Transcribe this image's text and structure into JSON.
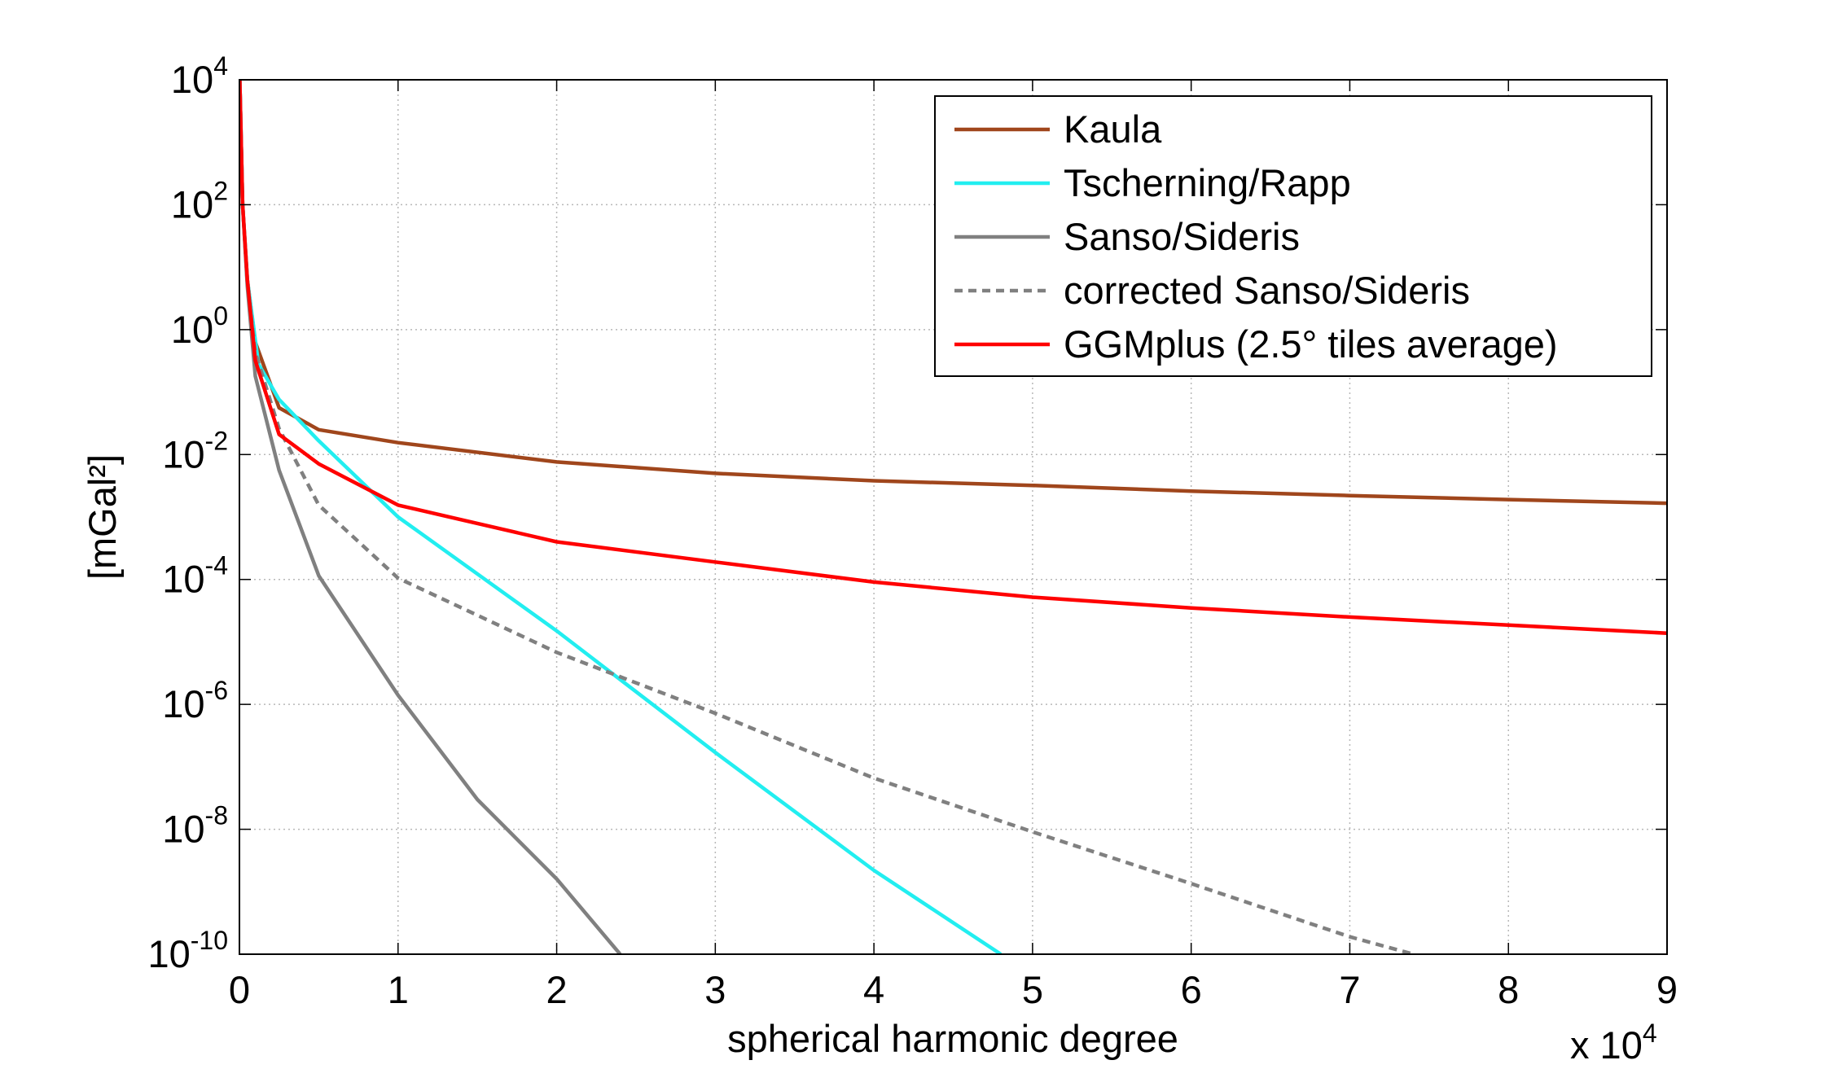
{
  "chart_data": {
    "type": "line",
    "xlabel": "spherical harmonic degree",
    "ylabel": "[mGal²]",
    "x_multiplier": {
      "label": "x 10",
      "exponent": "4"
    },
    "xlim": [
      0,
      90000
    ],
    "ylim": [
      1e-10,
      10000
    ],
    "log_y": true,
    "grid": true,
    "legend": "upper right",
    "xticks": [
      0,
      {
        "value": 10000,
        "label": "1"
      },
      {
        "value": 20000,
        "label": "2"
      },
      {
        "value": 30000,
        "label": "3"
      },
      {
        "value": 40000,
        "label": "4"
      },
      {
        "value": 50000,
        "label": "5"
      },
      {
        "value": 60000,
        "label": "6"
      },
      {
        "value": 70000,
        "label": "7"
      },
      {
        "value": 80000,
        "label": "8"
      },
      {
        "value": 90000,
        "label": "9"
      }
    ],
    "yticks": [
      {
        "value": 1e-10,
        "label": "10",
        "exponent": "-10"
      },
      {
        "value": 1e-08,
        "label": "10",
        "exponent": "-8"
      },
      {
        "value": 1e-06,
        "label": "10",
        "exponent": "-6"
      },
      {
        "value": 0.0001,
        "label": "10",
        "exponent": "-4"
      },
      {
        "value": 0.01,
        "label": "10",
        "exponent": "-2"
      },
      {
        "value": 1,
        "label": "10",
        "exponent": "0"
      },
      {
        "value": 100,
        "label": "10",
        "exponent": "2"
      },
      {
        "value": 10000,
        "label": "10",
        "exponent": "4"
      }
    ],
    "series": [
      {
        "name": "Kaula",
        "color": "#a0461c",
        "dash": false,
        "x": [
          20,
          200,
          500,
          1000,
          2500,
          5000,
          10000,
          20000,
          30000,
          40000,
          50000,
          60000,
          70000,
          80000,
          90000
        ],
        "values": [
          10000,
          100,
          6.3,
          0.63,
          0.056,
          0.025,
          0.0155,
          0.0076,
          0.005,
          0.0038,
          0.0032,
          0.0026,
          0.0022,
          0.0019,
          0.00166
        ]
      },
      {
        "name": "Tscherning/Rapp",
        "color": "#22eef0",
        "dash": false,
        "x": [
          20,
          200,
          500,
          1200,
          2500,
          5000,
          10000,
          20000,
          30000,
          40000,
          48000
        ],
        "values": [
          10000,
          100,
          6.3,
          0.28,
          0.076,
          0.0166,
          0.001,
          1.5e-05,
          1.7e-07,
          2.2e-09,
          1e-10
        ]
      },
      {
        "name": "Sanso/Sideris",
        "color": "#808080",
        "dash": false,
        "x": [
          20,
          200,
          500,
          1000,
          2500,
          5000,
          10000,
          15000,
          20000,
          24000
        ],
        "values": [
          10000,
          100,
          5,
          0.18,
          0.0056,
          0.000115,
          1.4e-06,
          3e-08,
          1.6e-09,
          1e-10
        ]
      },
      {
        "name": "corrected Sanso/Sideris",
        "color": "#808080",
        "dash": true,
        "x": [
          20,
          200,
          500,
          1000,
          2500,
          5000,
          10000,
          20000,
          30000,
          40000,
          50000,
          60000,
          70000,
          74000
        ],
        "values": [
          10000,
          100,
          5.5,
          0.43,
          0.026,
          0.00155,
          0.000105,
          6.8e-06,
          7.2e-07,
          6.6e-08,
          9.1e-09,
          1.35e-09,
          1.9e-10,
          1e-10
        ]
      },
      {
        "name": "GGMplus (2.5° tiles average)",
        "color": "#ff0000",
        "dash": false,
        "x": [
          20,
          200,
          500,
          1000,
          2500,
          5000,
          10000,
          20000,
          30000,
          40000,
          50000,
          60000,
          70000,
          80000,
          90000
        ],
        "values": [
          10000,
          100,
          6.3,
          0.32,
          0.021,
          0.0071,
          0.00155,
          0.0004,
          0.00019,
          9.1e-05,
          5.2e-05,
          3.5e-05,
          2.5e-05,
          1.86e-05,
          1.38e-05
        ]
      }
    ]
  }
}
